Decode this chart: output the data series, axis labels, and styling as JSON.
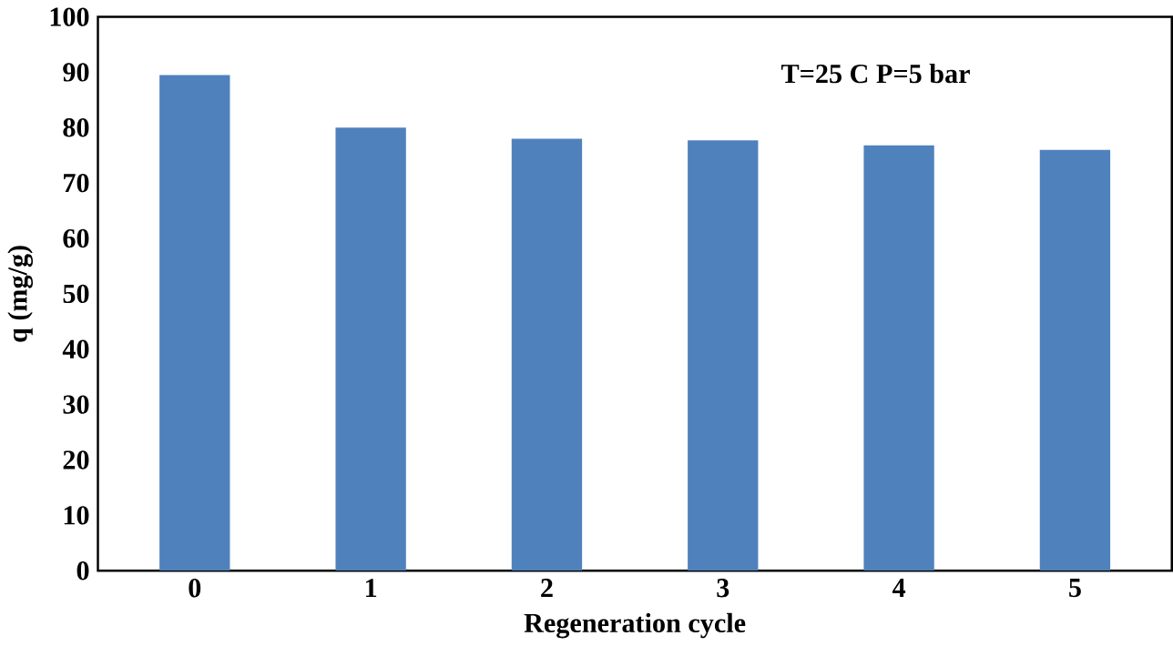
{
  "chart_data": {
    "type": "bar",
    "xlabel": "Regeneration cycle",
    "ylabel": "q (mg/g)",
    "categories": [
      "0",
      "1",
      "2",
      "3",
      "4",
      "5"
    ],
    "values": [
      89.5,
      80,
      78,
      77.7,
      76.8,
      76
    ],
    "color": "#4f81bd",
    "ylim": [
      0,
      100
    ],
    "yticks": [
      0,
      10,
      20,
      30,
      40,
      50,
      60,
      70,
      80,
      90,
      100
    ],
    "grid": false,
    "annotations": [
      "T=25  C    P=5 bar"
    ]
  }
}
